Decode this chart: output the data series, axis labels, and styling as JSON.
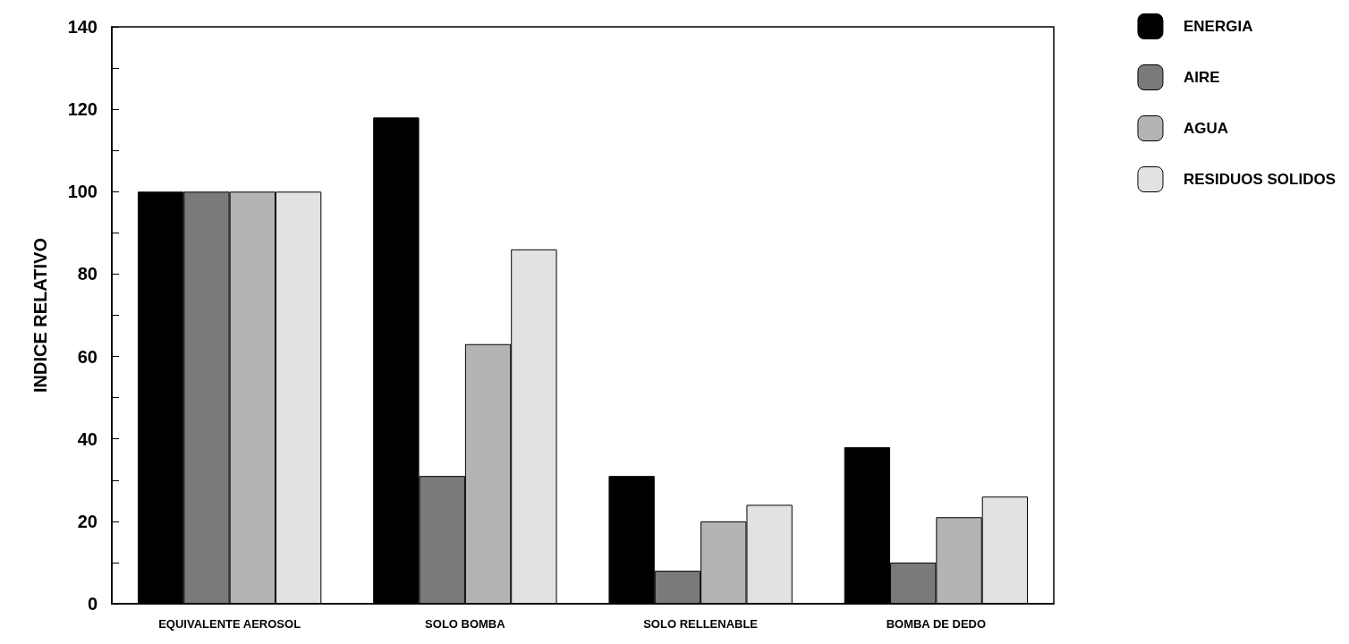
{
  "chart_data": {
    "type": "bar",
    "ylabel": "INDICE RELATIVO",
    "categories": [
      "EQUIVALENTE AEROSOL",
      "SOLO BOMBA",
      "SOLO RELLENABLE",
      "BOMBA DE DEDO"
    ],
    "series": [
      {
        "name": "ENERGIA",
        "color": "#000000",
        "values": [
          100,
          118,
          31,
          38
        ]
      },
      {
        "name": "AIRE",
        "color": "#7a7a7a",
        "values": [
          100,
          31,
          8,
          10
        ]
      },
      {
        "name": "AGUA",
        "color": "#b4b4b4",
        "values": [
          100,
          63,
          20,
          21
        ]
      },
      {
        "name": "RESIDUOS SOLIDOS",
        "color": "#e2e2e2",
        "values": [
          100,
          86,
          24,
          26
        ]
      }
    ],
    "ylim": [
      0,
      140
    ],
    "yticks": [
      0,
      {
        "value": 10,
        "label": null
      },
      20,
      {
        "value": 30,
        "label": null
      },
      40,
      {
        "value": 50,
        "label": null
      },
      60,
      {
        "value": 70,
        "label": null
      },
      80,
      {
        "value": 90,
        "label": null
      },
      100,
      {
        "value": 110,
        "label": null
      },
      120,
      {
        "value": 130,
        "label": null
      },
      140
    ],
    "grid": false,
    "legend": "top right"
  }
}
